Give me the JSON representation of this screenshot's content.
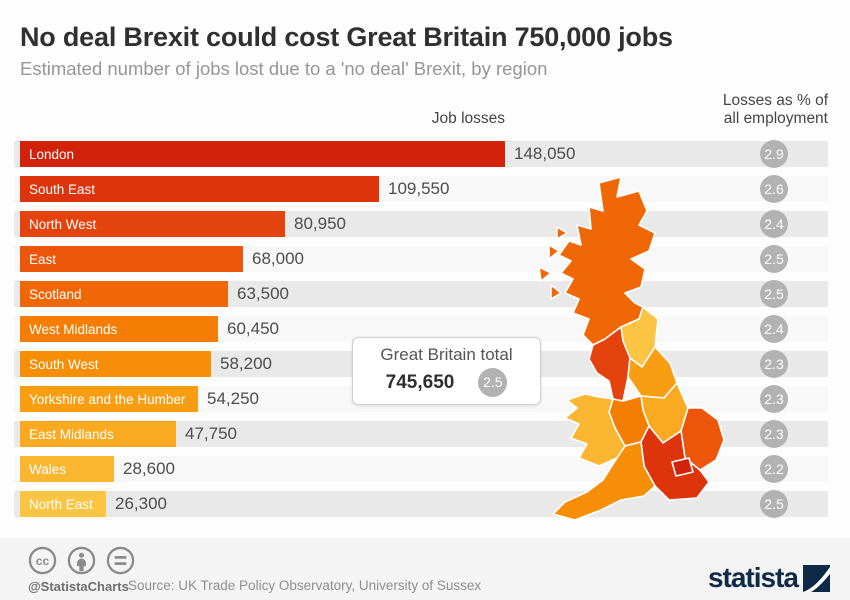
{
  "header": {
    "title": "No deal Brexit could cost Great Britain 750,000 jobs",
    "subtitle": "Estimated number of jobs lost due to a 'no deal' Brexit, by region"
  },
  "columns": {
    "job_losses": "Job losses",
    "pct_line1": "Losses as % of",
    "pct_line2": "all employment"
  },
  "chart_data": {
    "type": "bar",
    "orientation": "horizontal",
    "categories": [
      "London",
      "South East",
      "North West",
      "East",
      "Scotland",
      "West Midlands",
      "South West",
      "Yorkshire and the Humber",
      "East Midlands",
      "Wales",
      "North East"
    ],
    "series": [
      {
        "name": "Job losses",
        "values": [
          148050,
          109550,
          80950,
          68000,
          63500,
          60450,
          58200,
          54250,
          47750,
          28600,
          26300
        ],
        "labels": [
          "148,050",
          "109,550",
          "80,950",
          "68,000",
          "63,500",
          "60,450",
          "58,200",
          "54,250",
          "47,750",
          "28,600",
          "26,300"
        ]
      },
      {
        "name": "Losses as % of all employment",
        "values": [
          2.9,
          2.6,
          2.4,
          2.5,
          2.5,
          2.4,
          2.3,
          2.3,
          2.3,
          2.2,
          2.5
        ],
        "labels": [
          "2.9",
          "2.6",
          "2.4",
          "2.5",
          "2.5",
          "2.4",
          "2.3",
          "2.3",
          "2.3",
          "2.2",
          "2.5"
        ]
      }
    ],
    "bar_colors": [
      "#d2230a",
      "#dd340c",
      "#e5430e",
      "#ec560b",
      "#f06806",
      "#f57d04",
      "#f78e08",
      "#f99e12",
      "#faaa20",
      "#fbb631",
      "#fcc443"
    ],
    "xmax": 148050,
    "legend_position": "none",
    "grid": false,
    "total": {
      "label": "Great Britain total",
      "value": 745650,
      "value_label": "745,650",
      "pct": 2.5,
      "pct_label": "2.5"
    }
  },
  "map": {
    "name": "great-britain-choropleth",
    "regions": [
      {
        "id": "scotland",
        "name": "Scotland",
        "color": "#f06806"
      },
      {
        "id": "north_east",
        "name": "North East",
        "color": "#fcc443"
      },
      {
        "id": "north_west",
        "name": "North West",
        "color": "#e5430e"
      },
      {
        "id": "yorkshire",
        "name": "Yorkshire and the Humber",
        "color": "#f99e12"
      },
      {
        "id": "east_midlands",
        "name": "East Midlands",
        "color": "#faaa20"
      },
      {
        "id": "west_midlands",
        "name": "West Midlands",
        "color": "#f57d04"
      },
      {
        "id": "wales",
        "name": "Wales",
        "color": "#fbb631"
      },
      {
        "id": "east",
        "name": "East",
        "color": "#ec560b"
      },
      {
        "id": "london",
        "name": "London",
        "color": "#d2230a"
      },
      {
        "id": "south_east",
        "name": "South East",
        "color": "#dd340c"
      },
      {
        "id": "south_west",
        "name": "South West",
        "color": "#f78e08"
      }
    ]
  },
  "footer": {
    "license_icons": [
      "cc-icon",
      "attribution-icon",
      "equal-icon"
    ],
    "handle": "@StatistaCharts",
    "source": "Source: UK Trade Policy Observatory, University of Sussex",
    "brand": "statista"
  },
  "colors": {
    "badge_gray": "#b2b2b2",
    "stripe_odd": "#e9e9e9",
    "stripe_even": "#f8f8f8",
    "brand_navy": "#0e2a47"
  }
}
